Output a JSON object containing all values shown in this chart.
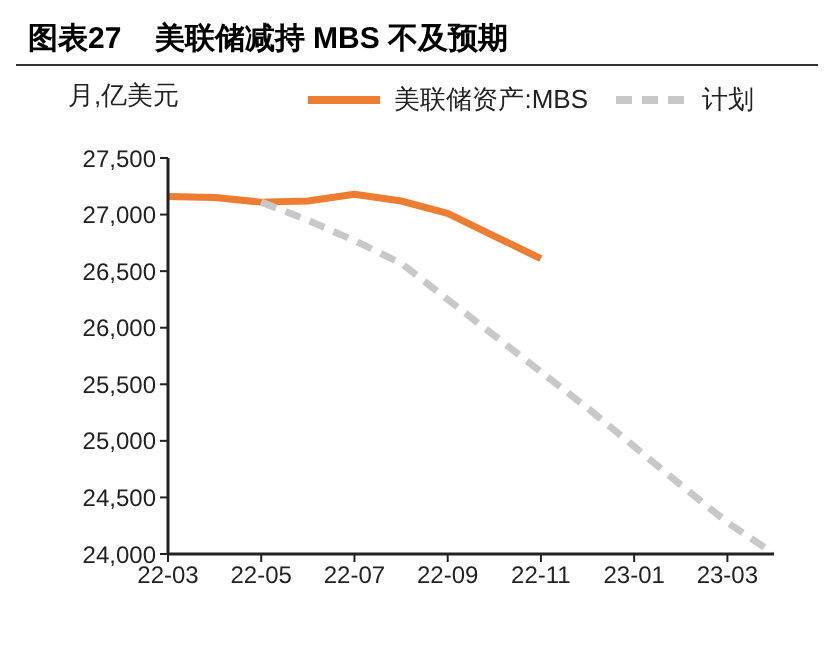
{
  "chart_data": {
    "type": "line",
    "title": "图表27    美联储减持 MBS 不及预期",
    "ylabel": "月,亿美元",
    "categories": [
      "22-03",
      null,
      "22-05",
      null,
      "22-07",
      null,
      "22-09",
      null,
      "22-11",
      null,
      "23-01",
      null,
      "23-03",
      null
    ],
    "series": [
      {
        "name": "美联储资产:MBS",
        "color": "#ed7d31",
        "line_style": "solid",
        "values": [
          27160,
          27150,
          27110,
          27120,
          27180,
          27120,
          27010,
          26810,
          26610,
          null,
          null,
          null,
          null,
          null
        ]
      },
      {
        "name": "计划",
        "color": "#c8c8c8",
        "line_style": "dashed",
        "values": [
          null,
          null,
          27110,
          26950,
          26770,
          26570,
          26250,
          25930,
          25610,
          25290,
          24950,
          24610,
          24280,
          24000
        ]
      }
    ],
    "ylim": [
      24000,
      27500
    ],
    "yticks": [
      {
        "value": 24000,
        "label": "24,000"
      },
      {
        "value": 24500,
        "label": "24,500"
      },
      {
        "value": 25000,
        "label": "25,000"
      },
      {
        "value": 25500,
        "label": "25,500"
      },
      {
        "value": 26000,
        "label": "26,000"
      },
      {
        "value": 26500,
        "label": "26,500"
      },
      {
        "value": 27000,
        "label": "27,000"
      },
      {
        "value": 27500,
        "label": "27,500"
      }
    ],
    "grid": false,
    "legend": "top",
    "marker": "none"
  }
}
